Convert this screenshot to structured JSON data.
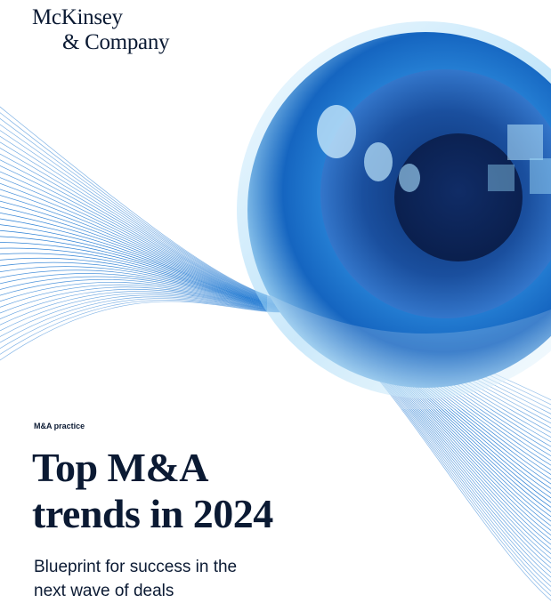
{
  "brand": {
    "line1": "McKinsey",
    "line2": "& Company"
  },
  "practice": "M&A practice",
  "title": {
    "line1": "Top M&A",
    "line2": "trends in 2024"
  },
  "subtitle": {
    "line1": "Blueprint for success in the",
    "line2": "next wave of deals"
  },
  "colors": {
    "ink": "#0b1a33",
    "wave": "#1f78d1",
    "sphere": "#2e7fd6",
    "pupil": "#0e3d8c"
  },
  "art": {
    "motif": "glass-eye-sphere-with-wave-lines"
  }
}
